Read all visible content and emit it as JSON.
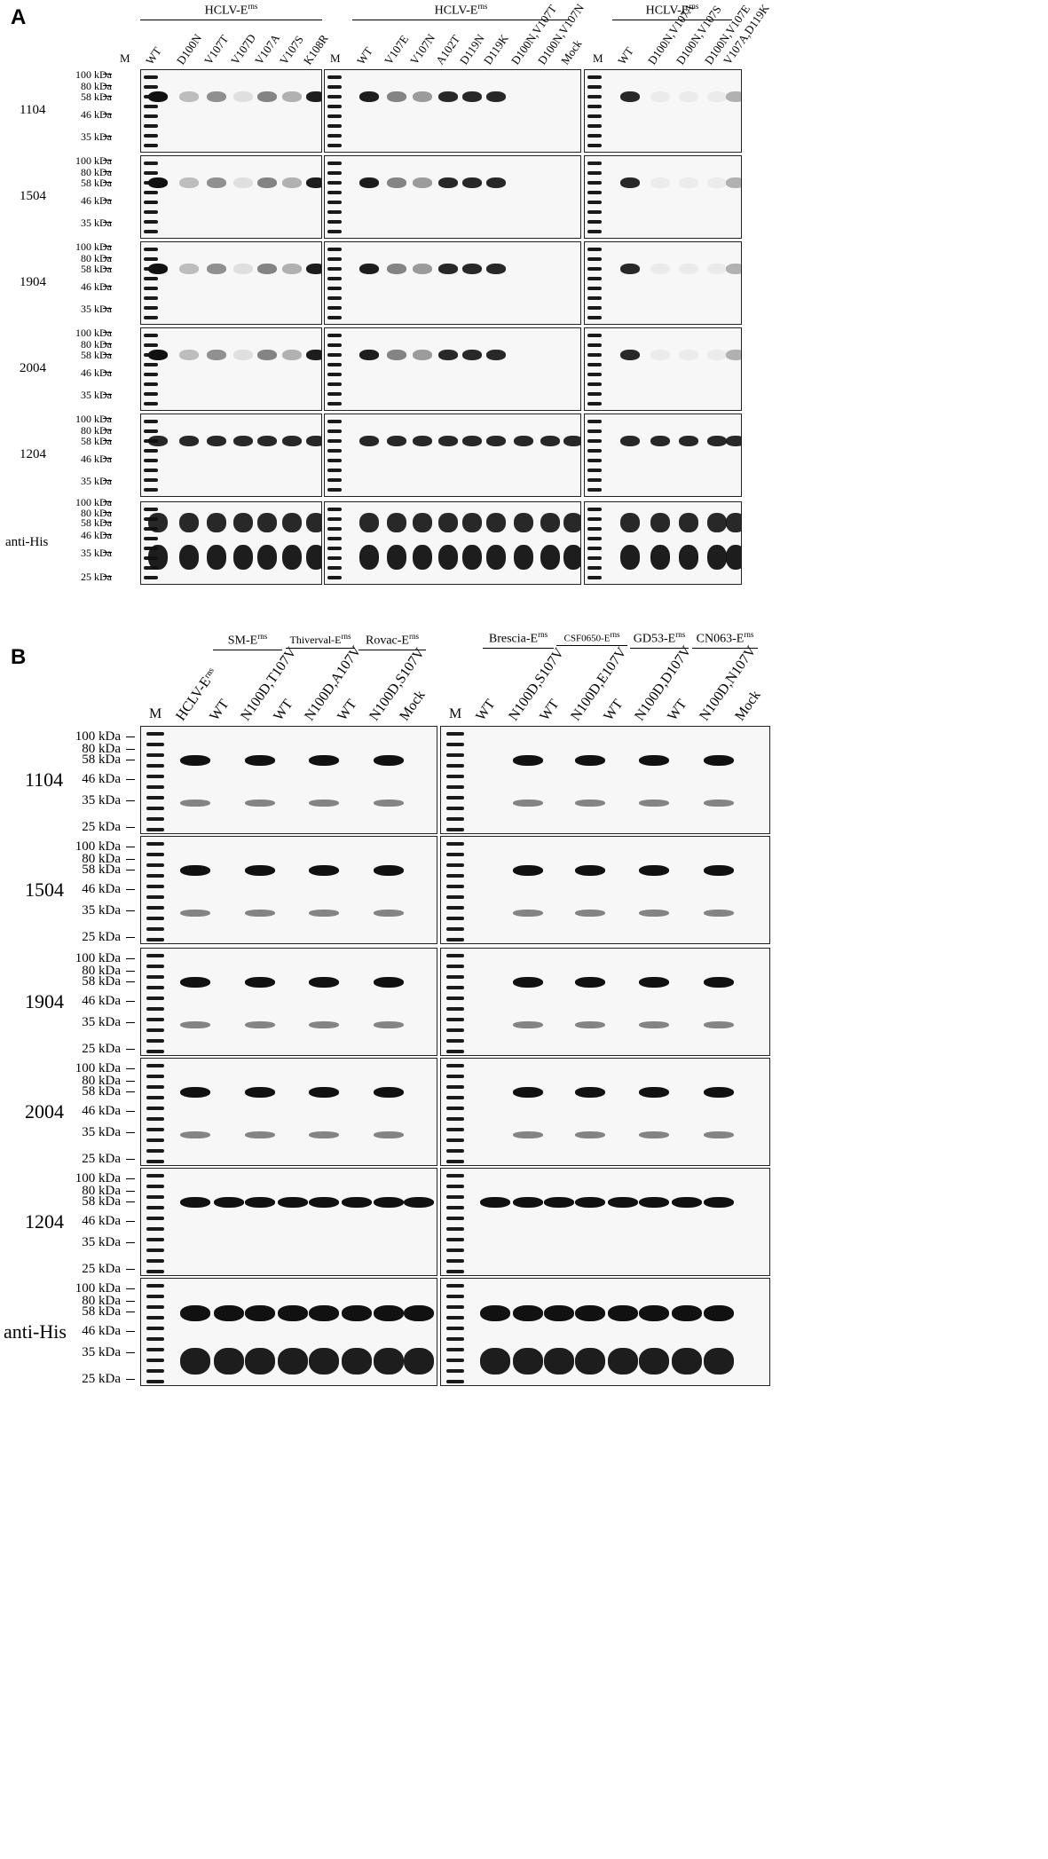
{
  "panelA": {
    "label": "A",
    "groups": [
      {
        "name": "HCLV-E",
        "sup": "rns"
      },
      {
        "name": "HCLV-E",
        "sup": "rns"
      },
      {
        "name": "HCLV-E",
        "sup": "rns"
      }
    ],
    "blocks": [
      {
        "lanes": [
          "M",
          "WT",
          "D100N",
          "V107T",
          "V107D",
          "V107A",
          "V107S",
          "K108R"
        ]
      },
      {
        "lanes": [
          "M",
          "WT",
          "V107E",
          "V107N",
          "A102T",
          "D119N",
          "D119K",
          "D100N,V107T",
          "D100N,V107N",
          "Mock"
        ]
      },
      {
        "lanes": [
          "M",
          "WT",
          "D100N,V107A",
          "D100N,V107S",
          "D100N,V107E",
          "V107A,D119K"
        ]
      }
    ],
    "rows": [
      "1104",
      "1504",
      "1904",
      "2004",
      "1204",
      "anti-His"
    ],
    "markers": [
      "100 kDa",
      "80 kDa",
      "58 kDa",
      "46 kDa",
      "35 kDa"
    ],
    "markers_antihis": [
      "100 kDa",
      "80 kDa",
      "58 kDa",
      "46 kDa",
      "35 kDa",
      "25 kDa"
    ]
  },
  "panelB": {
    "label": "B",
    "groups_left": [
      {
        "name": "SM-E",
        "sup": "rns"
      },
      {
        "name": "Thiverval-E",
        "sup": "rns"
      },
      {
        "name": "Rovac-E",
        "sup": "rns"
      }
    ],
    "groups_right": [
      {
        "name": "Brescia-E",
        "sup": "rns"
      },
      {
        "name": "CSF0650-E",
        "sup": "rns"
      },
      {
        "name": "GD53-E",
        "sup": "rns"
      },
      {
        "name": "CN063-E",
        "sup": "rns"
      }
    ],
    "lanes_left": [
      "M",
      "HCLV-Eʳⁿˢ",
      "WT",
      "N100D,T107V",
      "WT",
      "N100D,A107V",
      "WT",
      "N100D,S107V",
      "Mock"
    ],
    "lanes_right": [
      "M",
      "WT",
      "N100D,S107V",
      "WT",
      "N100D,E107V",
      "WT",
      "N100D,D107V",
      "WT",
      "N100D,N107V",
      "Mock"
    ],
    "rows": [
      "1104",
      "1504",
      "1904",
      "2004",
      "1204",
      "anti-His"
    ],
    "markers": [
      "100 kDa",
      "80 kDa",
      "58 kDa",
      "46 kDa",
      "35 kDa",
      "25 kDa"
    ]
  }
}
